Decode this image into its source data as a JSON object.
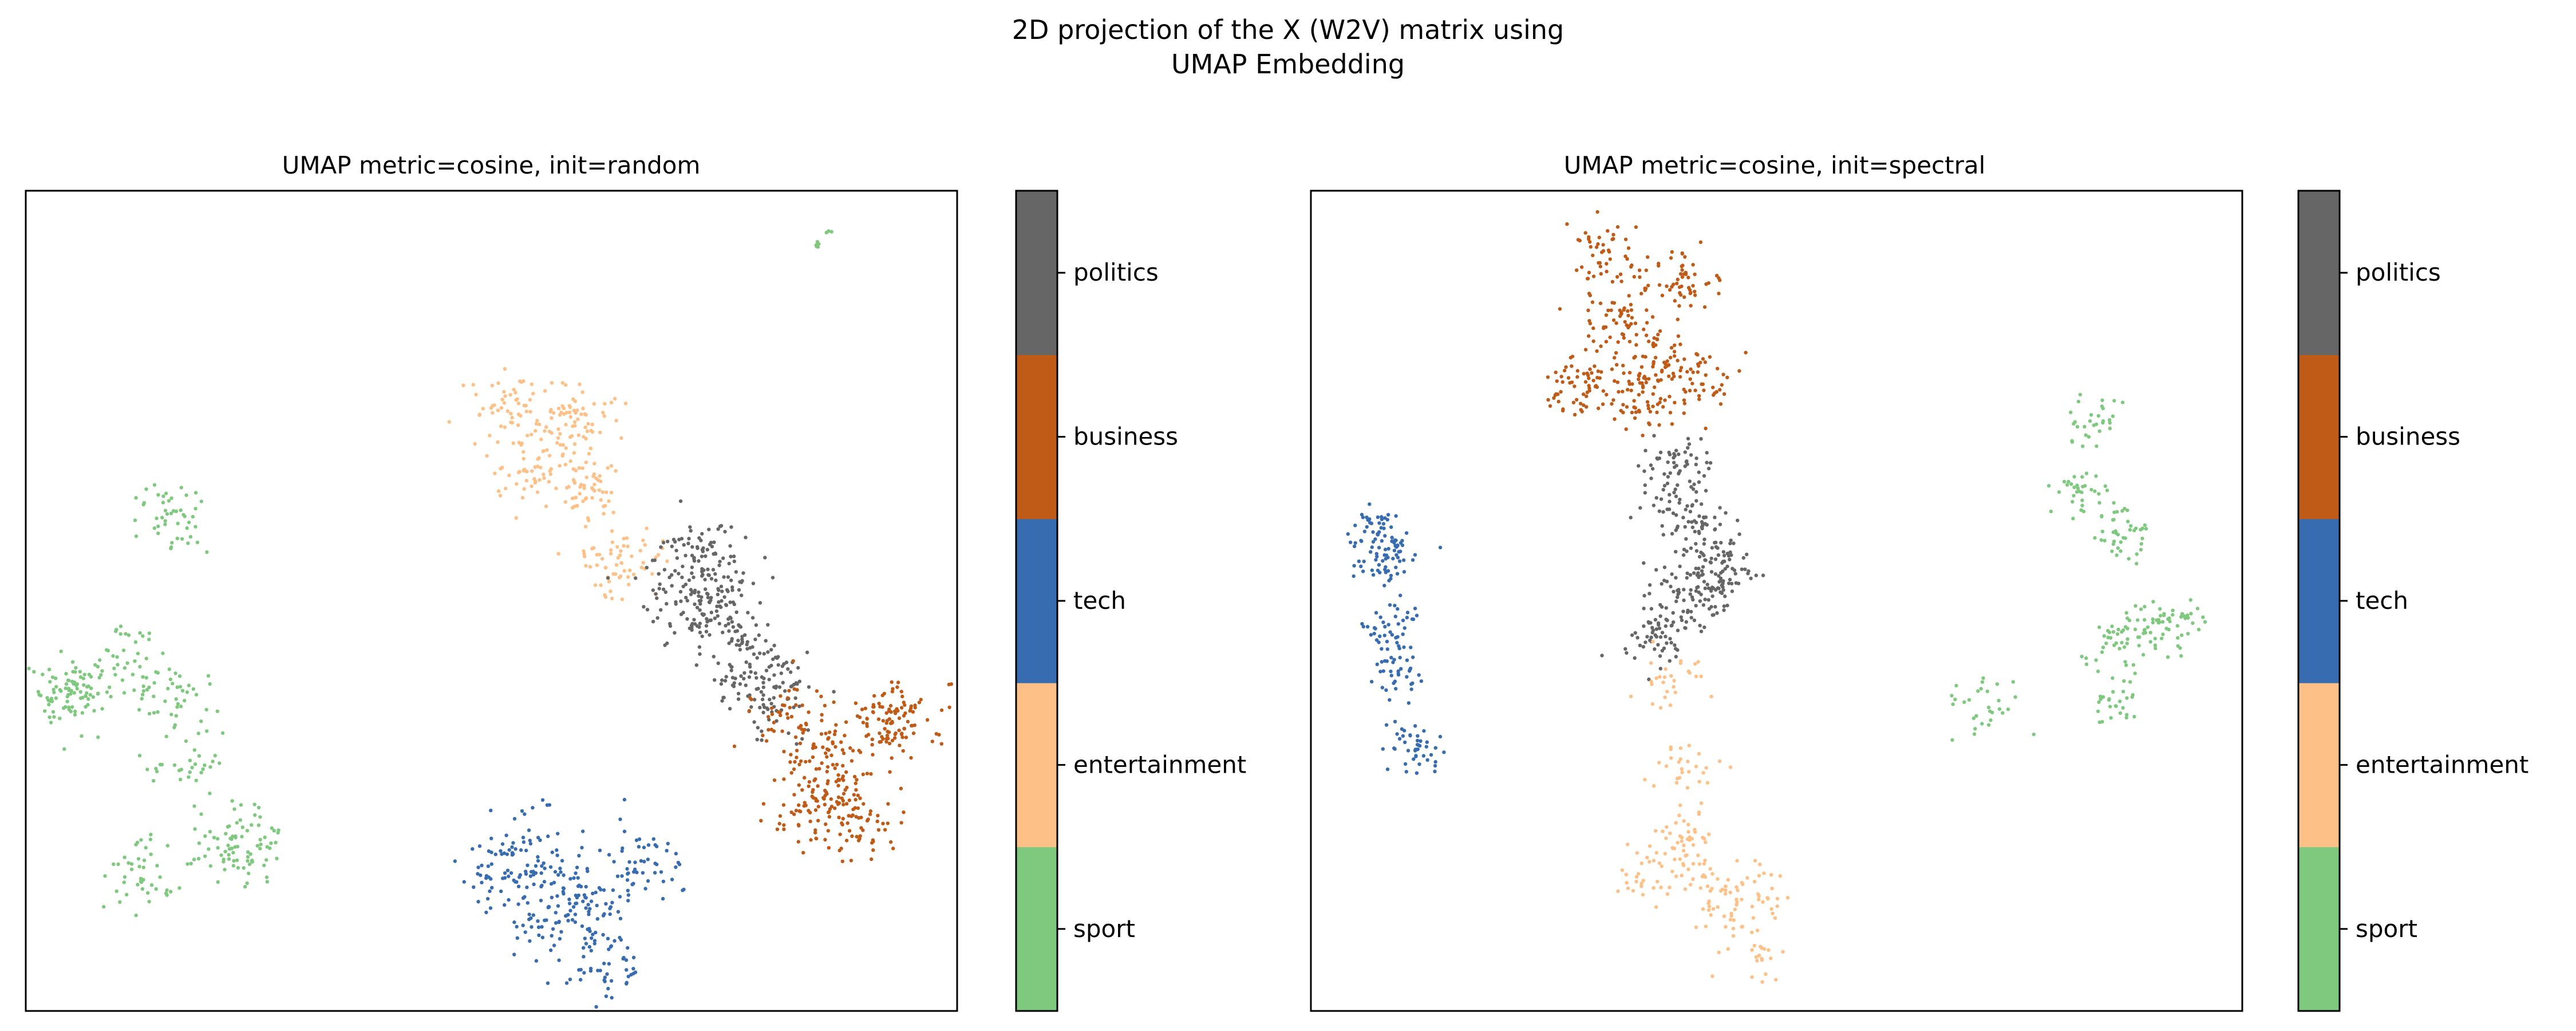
{
  "figure": {
    "title_line1": "2D projection of the X (W2V) matrix using",
    "title_line2": "UMAP Embedding"
  },
  "legend": {
    "categories": [
      "sport",
      "entertainment",
      "tech",
      "business",
      "politics"
    ],
    "colors": {
      "sport": "#7fc97f",
      "entertainment": "#fdc086",
      "tech": "#386cb0",
      "business": "#bf5b17",
      "politics": "#666666"
    }
  },
  "chart_data": [
    {
      "type": "scatter",
      "title": "UMAP metric=cosine, init=random",
      "xlabel": "",
      "ylabel": "",
      "xlim": [
        0,
        100
      ],
      "ylim": [
        0,
        100
      ],
      "grid": false,
      "axis_ticks": false,
      "colorbar": {
        "position": "right",
        "labels": [
          "sport",
          "entertainment",
          "tech",
          "business",
          "politics"
        ]
      },
      "clusters": [
        {
          "category": "sport",
          "points": [
            [
              15.5,
              60
            ],
            [
              10.5,
              43
            ],
            [
              16,
              38
            ],
            [
              18,
              30
            ],
            [
              22,
              20
            ],
            [
              5.5,
              40
            ],
            [
              4.5,
              38
            ],
            [
              24.5,
              20.5
            ],
            [
              12.5,
              17
            ]
          ],
          "spread": 3.8,
          "n": 380
        },
        {
          "category": "sport",
          "points": [
            [
              85,
              93.5
            ],
            [
              86.2,
              95
            ]
          ],
          "spread": 0.4,
          "n": 10
        },
        {
          "category": "entertainment",
          "points": [
            [
              52,
              74.5
            ],
            [
              59,
              72
            ],
            [
              55,
              67
            ],
            [
              60.5,
              63
            ],
            [
              64,
              55
            ]
          ],
          "spread": 4.2,
          "n": 300
        },
        {
          "category": "politics",
          "points": [
            [
              73,
              55
            ],
            [
              74,
              48
            ],
            [
              78,
              42
            ],
            [
              71,
              51
            ],
            [
              80,
              38
            ]
          ],
          "spread": 4.8,
          "n": 360
        },
        {
          "category": "business",
          "points": [
            [
              82,
              36
            ],
            [
              86,
              31
            ],
            [
              88,
              27
            ],
            [
              84,
              24
            ],
            [
              92,
              35
            ],
            [
              94,
              36
            ],
            [
              90,
              23
            ]
          ],
          "spread": 4.0,
          "n": 360
        },
        {
          "category": "tech",
          "points": [
            [
              51,
              17
            ],
            [
              58,
              15
            ],
            [
              61,
              13
            ],
            [
              66,
              18
            ],
            [
              56,
              11
            ],
            [
              54,
              20
            ],
            [
              62,
              5
            ]
          ],
          "spread": 4.2,
          "n": 320
        }
      ]
    },
    {
      "type": "scatter",
      "title": "UMAP metric=cosine, init=spectral",
      "xlabel": "",
      "ylabel": "",
      "xlim": [
        0,
        100
      ],
      "ylim": [
        0,
        100
      ],
      "grid": false,
      "axis_ticks": false,
      "colorbar": {
        "position": "right",
        "labels": [
          "sport",
          "entertainment",
          "tech",
          "business",
          "politics"
        ]
      },
      "clusters": [
        {
          "category": "business",
          "points": [
            [
              32,
              92
            ],
            [
              40,
              89
            ],
            [
              33,
              84
            ],
            [
              29,
              76
            ],
            [
              38,
              79
            ],
            [
              42,
              76
            ],
            [
              36,
              74
            ]
          ],
          "spread": 3.8,
          "n": 380
        },
        {
          "category": "politics",
          "points": [
            [
              39,
              66
            ],
            [
              41,
              60
            ],
            [
              43,
              55
            ],
            [
              40,
              50
            ],
            [
              37,
              46
            ],
            [
              44,
              52
            ]
          ],
          "spread": 3.6,
          "n": 340
        },
        {
          "category": "entertainment",
          "points": [
            [
              39,
              40
            ],
            [
              40,
              30
            ],
            [
              40,
              22
            ],
            [
              40,
              17
            ],
            [
              44,
              13
            ],
            [
              48,
              15
            ],
            [
              48,
              7
            ],
            [
              36,
              17
            ]
          ],
          "spread": 3.2,
          "n": 230
        },
        {
          "category": "tech",
          "points": [
            [
              8,
              55
            ],
            [
              9,
              47
            ],
            [
              9,
              41
            ],
            [
              11,
              32
            ],
            [
              7,
              59
            ]
          ],
          "spread": 2.8,
          "n": 220
        },
        {
          "category": "sport",
          "points": [
            [
              84,
              72
            ],
            [
              83,
              63
            ],
            [
              87,
              58
            ],
            [
              90,
              47
            ],
            [
              93,
              47
            ],
            [
              86,
              45
            ],
            [
              72,
              37
            ],
            [
              86,
              38
            ]
          ],
          "spread": 3.0,
          "n": 260
        }
      ]
    }
  ]
}
